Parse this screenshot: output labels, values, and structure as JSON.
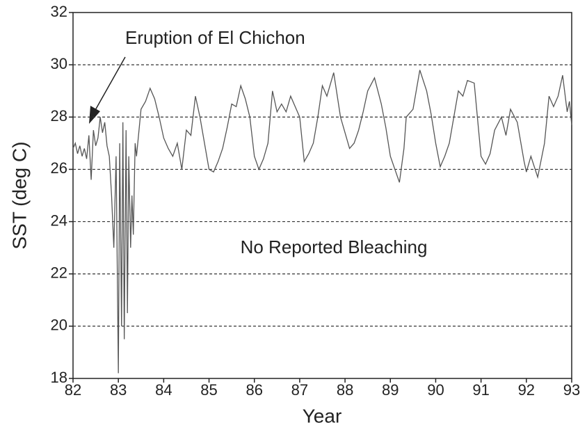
{
  "chart_data": {
    "type": "line",
    "xlabel": "Year",
    "ylabel": "SST (deg C)",
    "annotations": [
      "Eruption of El Chichon",
      "No Reported Bleaching"
    ],
    "xlim": [
      82,
      93
    ],
    "xticks": [
      82,
      83,
      84,
      85,
      86,
      87,
      88,
      89,
      90,
      91,
      92,
      93
    ],
    "ylim": [
      18,
      32
    ],
    "yticks": [
      18,
      20,
      22,
      24,
      26,
      28,
      30,
      32
    ],
    "grid": true,
    "series": [
      {
        "name": "SST",
        "color": "#555555",
        "x": [
          82.0,
          82.05,
          82.1,
          82.15,
          82.2,
          82.25,
          82.3,
          82.35,
          82.4,
          82.45,
          82.5,
          82.55,
          82.6,
          82.65,
          82.7,
          82.75,
          82.8,
          82.85,
          82.9,
          82.95,
          83.0,
          83.03,
          83.07,
          83.1,
          83.13,
          83.17,
          83.2,
          83.23,
          83.27,
          83.3,
          83.33,
          83.37,
          83.4,
          83.5,
          83.6,
          83.7,
          83.8,
          83.9,
          84.0,
          84.1,
          84.2,
          84.3,
          84.4,
          84.5,
          84.6,
          84.7,
          84.8,
          84.9,
          85.0,
          85.1,
          85.2,
          85.3,
          85.4,
          85.5,
          85.6,
          85.7,
          85.8,
          85.9,
          86.0,
          86.1,
          86.2,
          86.3,
          86.4,
          86.5,
          86.6,
          86.7,
          86.8,
          86.9,
          87.0,
          87.1,
          87.2,
          87.3,
          87.4,
          87.5,
          87.6,
          87.75,
          87.9,
          88.0,
          88.1,
          88.2,
          88.3,
          88.4,
          88.5,
          88.65,
          88.8,
          88.9,
          89.0,
          89.1,
          89.2,
          89.3,
          89.35,
          89.5,
          89.65,
          89.8,
          89.9,
          90.0,
          90.1,
          90.2,
          90.3,
          90.4,
          90.5,
          90.6,
          90.7,
          90.85,
          91.0,
          91.1,
          91.2,
          91.3,
          91.45,
          91.55,
          91.65,
          91.8,
          91.95,
          92.0,
          92.1,
          92.25,
          92.4,
          92.5,
          92.6,
          92.7,
          92.8,
          92.9,
          92.95,
          93.0
        ],
        "values": [
          26.8,
          27.0,
          26.6,
          26.9,
          26.5,
          26.8,
          26.4,
          27.3,
          25.6,
          27.5,
          26.9,
          27.2,
          28.0,
          27.4,
          27.8,
          26.9,
          26.5,
          25.0,
          23.0,
          26.5,
          18.2,
          27.0,
          20.0,
          27.8,
          19.5,
          27.5,
          20.5,
          26.5,
          23.0,
          25.0,
          23.5,
          27.0,
          26.5,
          28.3,
          28.6,
          29.1,
          28.7,
          28.0,
          27.2,
          26.8,
          26.5,
          27.0,
          26.0,
          27.5,
          27.3,
          28.8,
          28.0,
          27.0,
          26.0,
          25.9,
          26.3,
          26.8,
          27.6,
          28.5,
          28.4,
          29.2,
          28.7,
          28.0,
          26.5,
          26.0,
          26.4,
          27.0,
          29.0,
          28.2,
          28.5,
          28.2,
          28.8,
          28.4,
          28.0,
          26.3,
          26.6,
          27.0,
          28.0,
          29.2,
          28.8,
          29.7,
          28.0,
          27.4,
          26.8,
          27.0,
          27.5,
          28.2,
          29.0,
          29.5,
          28.5,
          27.6,
          26.5,
          26.0,
          25.5,
          26.8,
          28.0,
          28.3,
          29.8,
          29.0,
          28.1,
          27.0,
          26.1,
          26.5,
          27.0,
          28.0,
          29.0,
          28.8,
          29.4,
          29.3,
          26.5,
          26.2,
          26.6,
          27.5,
          28.0,
          27.3,
          28.3,
          27.8,
          26.3,
          25.9,
          26.5,
          25.7,
          27.0,
          28.8,
          28.4,
          28.8,
          29.6,
          28.2,
          28.6,
          27.7
        ]
      }
    ]
  }
}
